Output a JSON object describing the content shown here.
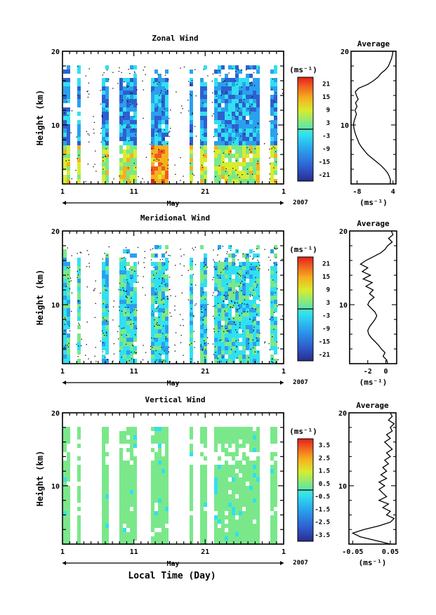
{
  "figure": {
    "xlabel": "Local Time (Day)",
    "month_label": "May",
    "year_label": "2007"
  },
  "chart_data": [
    {
      "type": "heatmap",
      "title": "Zonal Wind",
      "ylabel": "Height (km)",
      "xlabel": "",
      "x_range": [
        1,
        32
      ],
      "xtick_labels": [
        "1",
        "11",
        "21",
        "1"
      ],
      "ylim": [
        2,
        20
      ],
      "ytick_labels": [
        "20",
        "10"
      ],
      "colorbar": {
        "unit": "(ms⁻¹)",
        "labels": [
          "21",
          "15",
          "9",
          "3",
          "-3",
          "-9",
          "-15",
          "-21"
        ],
        "range": [
          -24,
          24
        ]
      },
      "average_profile": {
        "title": "Average",
        "xlabel": "(ms⁻¹)",
        "xtick_labels": [
          "-8",
          "4"
        ],
        "xlim": [
          -10,
          5
        ],
        "ytick_labels": [
          "20",
          "10"
        ],
        "height": [
          2.0,
          2.5,
          3.0,
          3.5,
          4.0,
          4.5,
          5.0,
          5.5,
          6.0,
          6.5,
          7.0,
          7.5,
          8.0,
          8.5,
          9.0,
          9.5,
          10.0,
          10.5,
          11.0,
          11.5,
          12.0,
          12.5,
          13.0,
          13.5,
          14.0,
          14.5,
          15.0,
          15.5,
          16.0,
          16.5,
          17.0,
          17.5,
          18.0,
          18.5,
          19.0,
          19.5,
          20.0
        ],
        "value": [
          3.0,
          3.2,
          2.8,
          2.2,
          1.2,
          0.0,
          -1.5,
          -3.0,
          -4.5,
          -5.5,
          -6.5,
          -7.3,
          -7.8,
          -8.3,
          -8.7,
          -9.0,
          -9.2,
          -9.0,
          -8.6,
          -8.2,
          -8.7,
          -8.0,
          -8.5,
          -7.6,
          -8.2,
          -8.6,
          -7.4,
          -4.5,
          -2.5,
          -1.0,
          0.0,
          1.5,
          2.5,
          3.0,
          3.5,
          3.8,
          4.0
        ]
      }
    },
    {
      "type": "heatmap",
      "title": "Meridional Wind",
      "ylabel": "Height (km)",
      "xlabel": "",
      "x_range": [
        1,
        32
      ],
      "xtick_labels": [
        "1",
        "11",
        "21",
        "1"
      ],
      "ylim": [
        2,
        20
      ],
      "ytick_labels": [
        "20",
        "10"
      ],
      "colorbar": {
        "unit": "(ms⁻¹)",
        "labels": [
          "21",
          "15",
          "9",
          "3",
          "-3",
          "-9",
          "-15",
          "-21"
        ],
        "range": [
          -24,
          24
        ]
      },
      "average_profile": {
        "title": "Average",
        "xlabel": "(ms⁻¹)",
        "xtick_labels": [
          "-2",
          "0"
        ],
        "xlim": [
          -4,
          1.2
        ],
        "ytick_labels": [
          "20",
          "10"
        ],
        "height": [
          2.0,
          2.5,
          3.0,
          3.5,
          4.0,
          4.5,
          5.0,
          5.5,
          6.0,
          6.5,
          7.0,
          7.5,
          8.0,
          8.5,
          9.0,
          9.5,
          10.0,
          10.5,
          11.0,
          11.5,
          12.0,
          12.5,
          13.0,
          13.5,
          14.0,
          14.5,
          15.0,
          15.5,
          16.0,
          16.5,
          17.0,
          17.5,
          18.0,
          18.5,
          19.0,
          19.5,
          20.0
        ],
        "value": [
          0.2,
          0.1,
          -0.3,
          -0.1,
          -0.5,
          -0.8,
          -1.2,
          -1.6,
          -1.9,
          -2.0,
          -1.8,
          -1.5,
          -1.2,
          -1.0,
          -1.2,
          -1.6,
          -2.0,
          -1.8,
          -1.3,
          -1.8,
          -1.4,
          -2.2,
          -1.5,
          -2.5,
          -1.7,
          -2.6,
          -2.0,
          -2.8,
          -2.2,
          -1.4,
          -0.6,
          -0.1,
          0.2,
          0.7,
          0.3,
          0.8,
          0.6
        ]
      }
    },
    {
      "type": "heatmap",
      "title": "Vertical Wind",
      "ylabel": "Height (km)",
      "xlabel": "Local Time (Day)",
      "x_range": [
        1,
        32
      ],
      "xtick_labels": [
        "1",
        "11",
        "21",
        "1"
      ],
      "ylim": [
        2,
        20
      ],
      "ytick_labels": [
        "20",
        "10"
      ],
      "colorbar": {
        "unit": "(ms⁻¹)",
        "labels": [
          "3.5",
          "2.5",
          "1.5",
          "0.5",
          "-0.5",
          "-1.5",
          "-2.5",
          "-3.5"
        ],
        "range": [
          -4,
          4
        ]
      },
      "average_profile": {
        "title": "Average",
        "xlabel": "(ms⁻¹)",
        "xtick_labels": [
          "-0.05",
          "0.05"
        ],
        "xlim": [
          -0.06,
          0.065
        ],
        "ytick_labels": [
          "20",
          "10"
        ],
        "height": [
          2.0,
          2.5,
          3.0,
          3.5,
          4.0,
          4.5,
          5.0,
          5.5,
          6.0,
          6.5,
          7.0,
          7.5,
          8.0,
          8.5,
          9.0,
          9.5,
          10.0,
          10.5,
          11.0,
          11.5,
          12.0,
          12.5,
          13.0,
          13.5,
          14.0,
          14.5,
          15.0,
          15.5,
          16.0,
          16.5,
          17.0,
          17.5,
          18.0,
          18.5,
          19.0,
          19.5,
          20.0
        ],
        "value": [
          0.05,
          0.01,
          -0.03,
          -0.05,
          -0.02,
          0.02,
          0.05,
          0.06,
          0.04,
          0.05,
          0.03,
          0.045,
          0.02,
          0.04,
          0.03,
          0.02,
          0.035,
          0.02,
          0.04,
          0.025,
          0.04,
          0.03,
          0.045,
          0.035,
          0.05,
          0.04,
          0.055,
          0.045,
          0.035,
          0.05,
          0.04,
          0.055,
          0.05,
          0.06,
          0.045,
          0.055,
          0.05
        ]
      }
    }
  ]
}
